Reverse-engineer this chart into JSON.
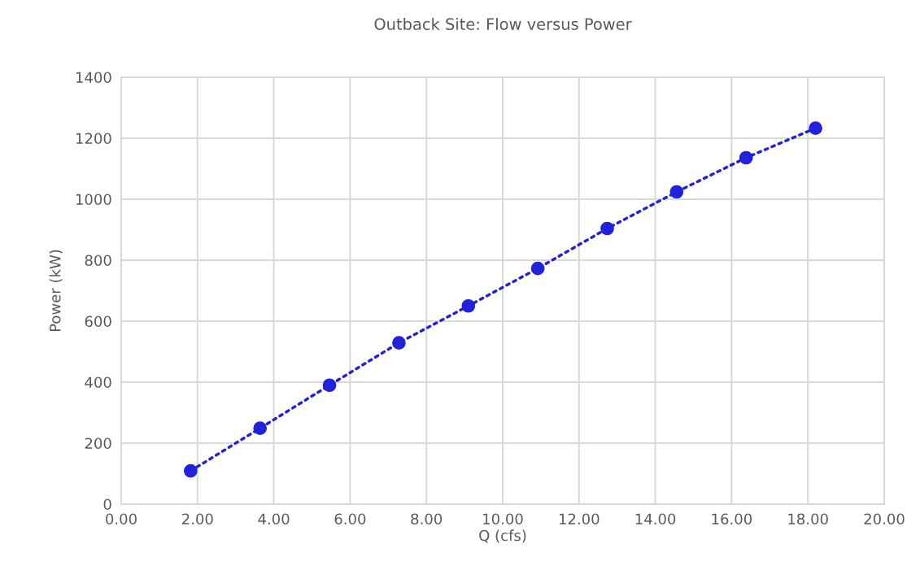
{
  "chart_data": {
    "type": "line",
    "title": "Outback Site: Flow versus Power",
    "xlabel": "Q (cfs)",
    "ylabel": "Power (kW)",
    "x": [
      1.82,
      3.64,
      5.46,
      7.28,
      9.1,
      10.92,
      12.74,
      14.56,
      16.38,
      18.2
    ],
    "series": [
      {
        "color": "#2222dd",
        "values": [
          109,
          249,
          390,
          529,
          650,
          773,
          904,
          1024,
          1136,
          1233
        ]
      }
    ],
    "xlim": [
      0,
      20
    ],
    "xticks": [
      {
        "value": 0,
        "label": "0.00"
      },
      {
        "value": 2,
        "label": "2.00"
      },
      {
        "value": 4,
        "label": "4.00"
      },
      {
        "value": 6,
        "label": "6.00"
      },
      {
        "value": 8,
        "label": "8.00"
      },
      {
        "value": 10,
        "label": "10.00"
      },
      {
        "value": 12,
        "label": "12.00"
      },
      {
        "value": 14,
        "label": "14.00"
      },
      {
        "value": 16,
        "label": "16.00"
      },
      {
        "value": 18,
        "label": "18.00"
      },
      {
        "value": 20,
        "label": "20.00"
      }
    ],
    "ylim": [
      0,
      1400
    ],
    "yticks": [
      0,
      200,
      400,
      600,
      800,
      1000,
      1200,
      1400
    ],
    "grid": true,
    "marker": "circle",
    "line_style": "dotted"
  }
}
